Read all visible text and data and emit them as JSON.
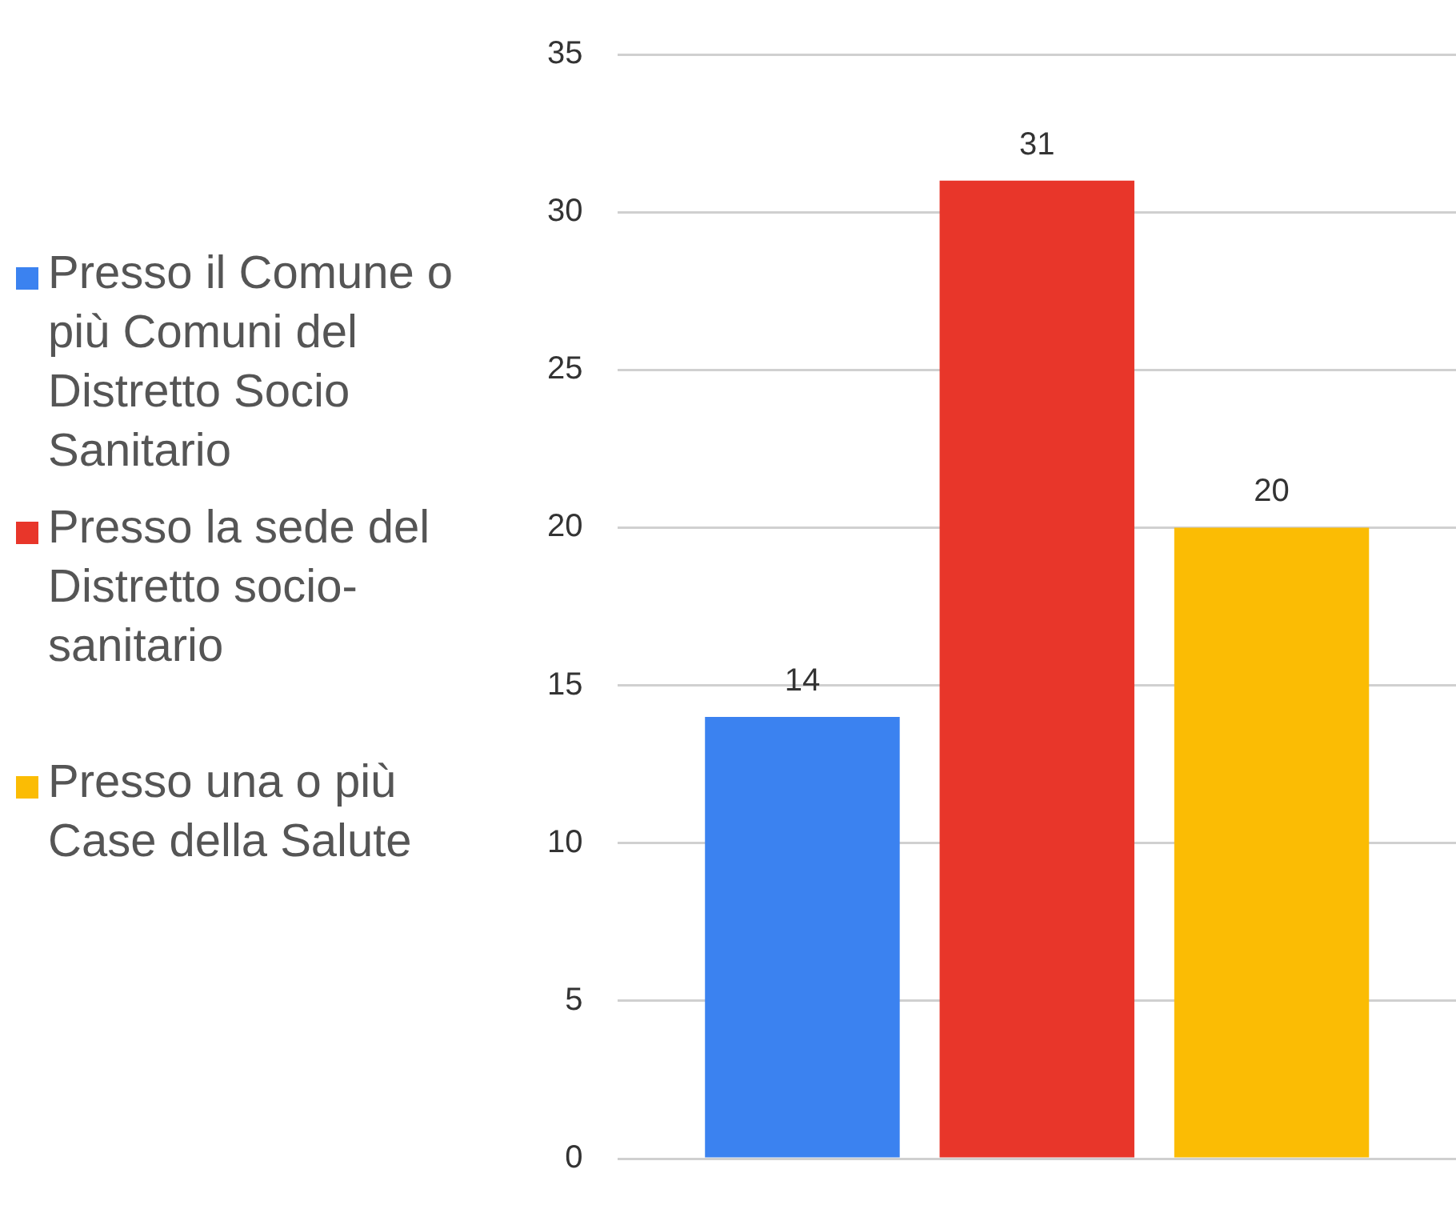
{
  "chart_data": {
    "type": "bar",
    "categories": [
      null
    ],
    "series": [
      {
        "name": "Presso il Comune o più Comuni del Distretto Socio Sanitario",
        "color": "#3b82f0",
        "values": [
          14
        ]
      },
      {
        "name": "Presso la sede del Distretto socio-sanitario",
        "color": "#e8362a",
        "values": [
          31
        ]
      },
      {
        "name": "Presso una o più Case della Salute",
        "color": "#fbbc04",
        "values": [
          20
        ]
      }
    ],
    "ylim": [
      0,
      35
    ],
    "yticks": [
      0,
      5,
      10,
      15,
      20,
      25,
      30,
      35
    ],
    "grid": "y",
    "legend": "left",
    "data_labels": true
  }
}
